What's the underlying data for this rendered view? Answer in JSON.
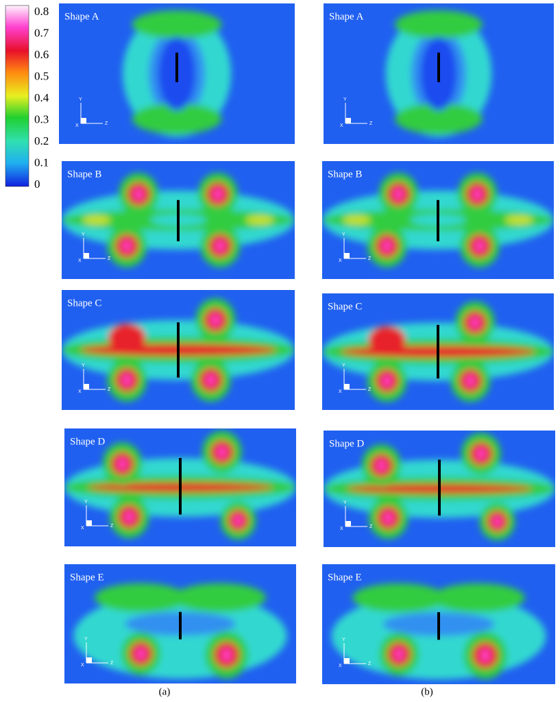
{
  "colorbar": {
    "ticks": [
      0.8,
      0.7,
      0.6,
      0.5,
      0.4,
      0.3,
      0.2,
      0.1,
      0
    ]
  },
  "axis_labels": {
    "y": "Y",
    "z": "Z",
    "x": "X"
  },
  "columns": [
    {
      "label": "(a)",
      "shapes": [
        "Shape A",
        "Shape B",
        "Shape C",
        "Shape D",
        "Shape E"
      ]
    },
    {
      "label": "(b)",
      "shapes": [
        "Shape A",
        "Shape B",
        "Shape C",
        "Shape D",
        "Shape E"
      ]
    }
  ]
}
